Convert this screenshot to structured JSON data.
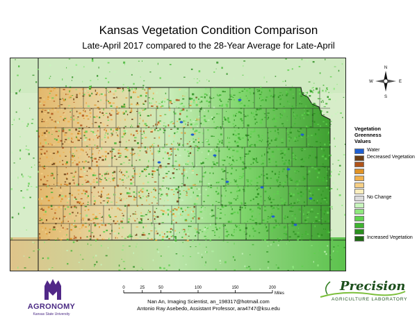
{
  "title": "Kansas Vegetation Condition Comparison",
  "subtitle": "Late-April 2017 compared to the 28-Year Average for Late-April",
  "compass": {
    "n": "N",
    "s": "S",
    "e": "E",
    "w": "W"
  },
  "legend": {
    "title_line1": "Vegetation",
    "title_line2": "Greenness",
    "title_line3": "Values",
    "items": [
      {
        "label": "Water",
        "color": "#1f5fd1"
      },
      {
        "label": "Decreased Vegetation",
        "color": "#6b3e14"
      },
      {
        "label": "",
        "color": "#b0541a"
      },
      {
        "label": "",
        "color": "#e09326"
      },
      {
        "label": "",
        "color": "#f0b04c"
      },
      {
        "label": "",
        "color": "#f6cf86"
      },
      {
        "label": "",
        "color": "#fbeebe"
      },
      {
        "label": "No Change",
        "color": "#dcdcdc"
      },
      {
        "label": "",
        "color": "#c8f5bd"
      },
      {
        "label": "",
        "color": "#8fe87e"
      },
      {
        "label": "",
        "color": "#5fd14e"
      },
      {
        "label": "",
        "color": "#3fb331"
      },
      {
        "label": "",
        "color": "#2b8f1f"
      },
      {
        "label": "Increased Vegetation",
        "color": "#1f6b14"
      }
    ]
  },
  "scale": {
    "ticks": [
      "0",
      "25",
      "50",
      "100",
      "150",
      "200"
    ],
    "unit": "Miles"
  },
  "credits": {
    "line1": "Nan An, Imaging Scientist, an_198317@hotmail.com",
    "line2": "Antonio Ray Asebedo, Assistant Professor, ara4747@ksu.edu"
  },
  "logos": {
    "agronomy": "AGRONOMY",
    "agronomy_sub": "Kansas State University",
    "precision": "Precision",
    "precision_sub": "AGRICULTURE LABORATORY"
  }
}
